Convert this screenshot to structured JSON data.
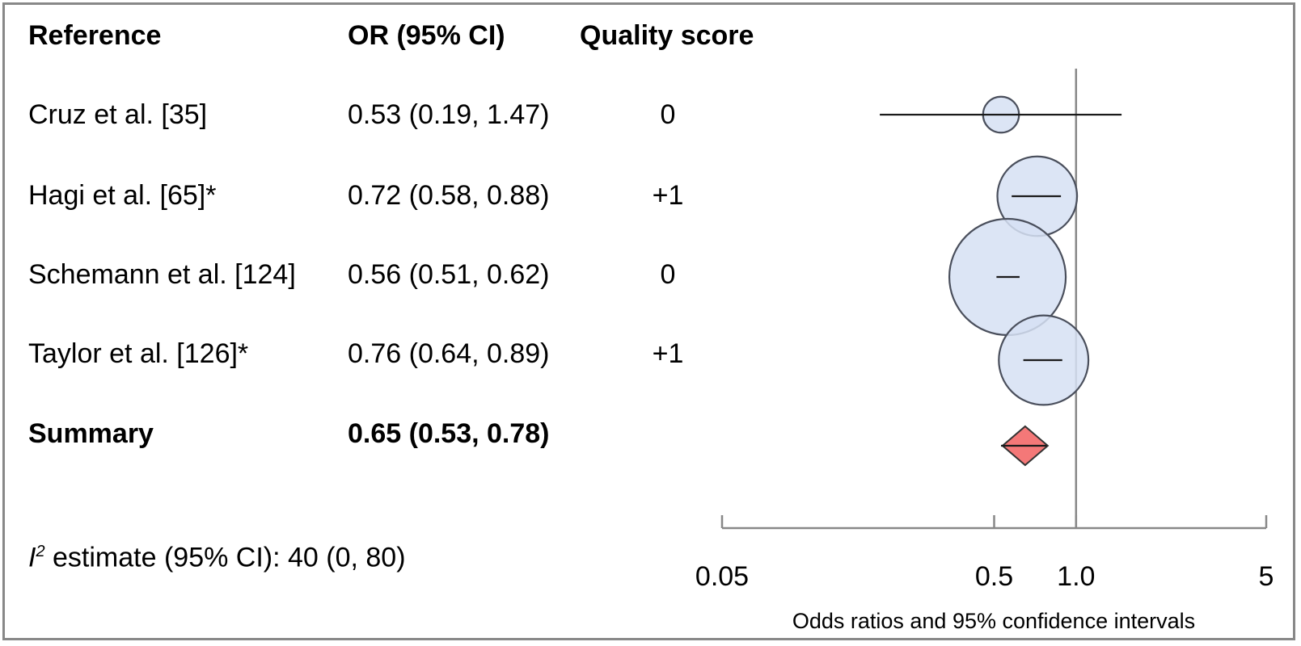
{
  "header": {
    "reference": "Reference",
    "or_ci": "OR (95% CI)",
    "quality": "Quality score"
  },
  "rows": [
    {
      "reference": "Cruz et al. [35]",
      "or_text": "0.53 (0.19, 1.47)",
      "quality": "0"
    },
    {
      "reference": "Hagi et al. [65]*",
      "or_text": "0.72 (0.58, 0.88)",
      "quality": "+1"
    },
    {
      "reference": "Schemann et al. [124]",
      "or_text": "0.56 (0.51, 0.62)",
      "quality": "0"
    },
    {
      "reference": "Taylor et al. [126]*",
      "or_text": "0.76 (0.64, 0.89)",
      "quality": "+1"
    }
  ],
  "summary": {
    "reference": "Summary",
    "or_text": "0.65 (0.53, 0.78)"
  },
  "heterogeneity": {
    "symbol": "I",
    "superscript": "2",
    "text": " estimate (95% CI): 40 (0, 80)"
  },
  "chart_data": {
    "type": "scatter",
    "subtype": "forest-plot",
    "x_scale": "log",
    "xlim": [
      0.05,
      5
    ],
    "xticks": [
      0.05,
      0.5,
      1.0,
      5
    ],
    "xtick_labels": [
      "0.05",
      "0.5",
      "1.0",
      "5"
    ],
    "xlabel": "Odds ratios and 95% confidence intervals",
    "reference_line": 1.0,
    "studies": [
      {
        "label": "Cruz et al. [35]",
        "or": 0.53,
        "lower": 0.19,
        "upper": 1.47
      },
      {
        "label": "Hagi et al. [65]*",
        "or": 0.72,
        "lower": 0.58,
        "upper": 0.88
      },
      {
        "label": "Schemann et al. [124]",
        "or": 0.56,
        "lower": 0.51,
        "upper": 0.62
      },
      {
        "label": "Taylor et al. [126]*",
        "or": 0.76,
        "lower": 0.64,
        "upper": 0.89
      }
    ],
    "summary": {
      "label": "Summary",
      "or": 0.65,
      "lower": 0.53,
      "upper": 0.78
    },
    "colors": {
      "marker_fill": "#d6e1f3",
      "marker_stroke": "#4a4f5c",
      "diamond_fill": "#f47878",
      "axis": "#888888"
    }
  }
}
